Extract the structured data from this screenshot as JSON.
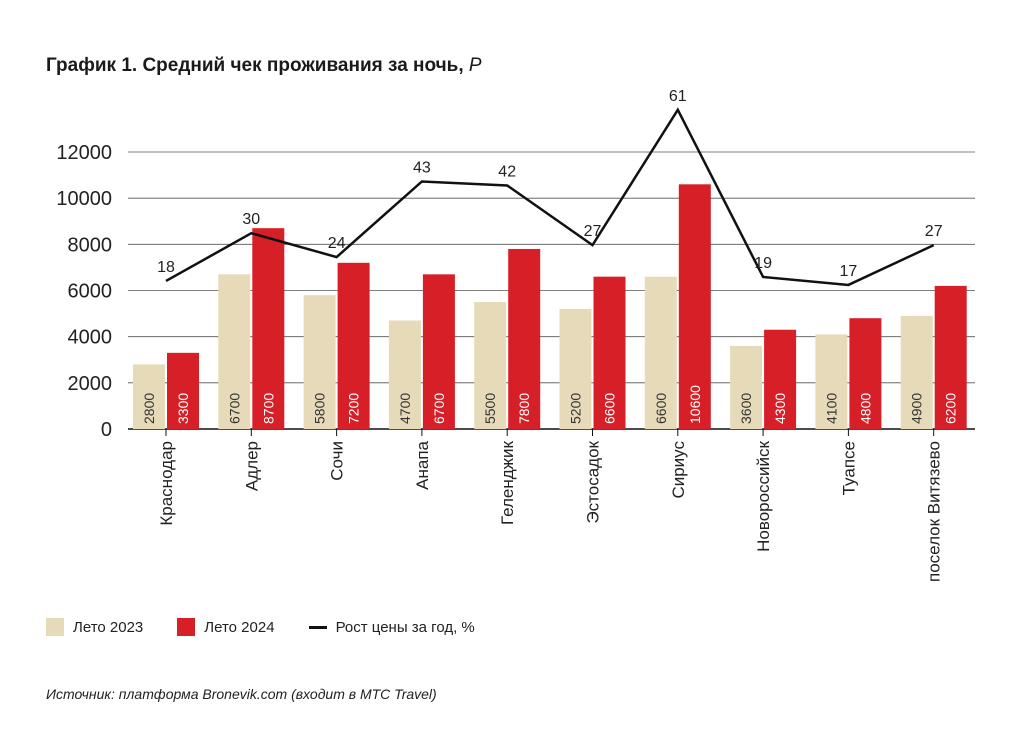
{
  "chart_data": {
    "type": "bar",
    "title": "График 1. Средний чек проживания за ночь,",
    "title_unit": "Р",
    "categories": [
      "Краснодар",
      "Адлер",
      "Сочи",
      "Анапа",
      "Геленджик",
      "Эстосадок",
      "Сириус",
      "Новороссийск",
      "Туапсе",
      "поселок Витязево"
    ],
    "series": [
      {
        "name": "Лето 2023",
        "color": "#e6dab8",
        "values": [
          2800,
          6700,
          5800,
          4700,
          5500,
          5200,
          6600,
          3600,
          4100,
          4900
        ]
      },
      {
        "name": "Лето 2024",
        "color": "#d71f27",
        "values": [
          3300,
          8700,
          7200,
          6700,
          7800,
          6600,
          10600,
          4300,
          4800,
          6200
        ]
      }
    ],
    "line_series": {
      "name": "Рост цены за год, %",
      "color": "#111111",
      "values": [
        18,
        30,
        24,
        43,
        42,
        27,
        61,
        19,
        17,
        27
      ]
    },
    "yticks": [
      0,
      2000,
      4000,
      6000,
      8000,
      10000,
      12000
    ],
    "ylim": [
      0,
      12000
    ],
    "grid": true,
    "legend_position": "bottom-left",
    "source": "Источник: платформа Bronevik.com (входит в МТС Travel)"
  }
}
